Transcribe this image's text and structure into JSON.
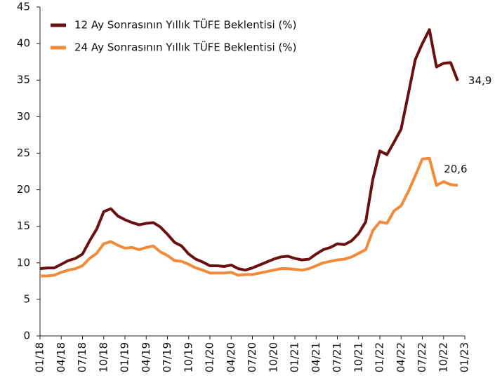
{
  "chart_data": {
    "type": "line",
    "categories": [
      "01/18",
      null,
      null,
      "04/18",
      null,
      null,
      "07/18",
      null,
      null,
      "10/18",
      null,
      null,
      "01/19",
      null,
      null,
      "04/19",
      null,
      null,
      "07/19",
      null,
      null,
      "10/19",
      null,
      null,
      "01/20",
      null,
      null,
      "04/20",
      null,
      null,
      "07/20",
      null,
      null,
      "10/20",
      null,
      null,
      "01/21",
      null,
      null,
      "04/21",
      null,
      null,
      "07/21",
      null,
      null,
      "10/21",
      null,
      null,
      "01/22",
      null,
      null,
      "04/22",
      null,
      null,
      "07/22",
      null,
      null,
      "10/22",
      null,
      null,
      "01/23"
    ],
    "series": [
      {
        "name": "12 Ay Sonrasının Yıllık TÜFE Beklentisi (%)",
        "color": "#6b1010",
        "values": [
          9.2,
          9.3,
          9.3,
          9.8,
          10.3,
          10.6,
          11.2,
          13.0,
          14.6,
          17.0,
          17.4,
          16.4,
          15.9,
          15.5,
          15.2,
          15.4,
          15.5,
          14.9,
          13.9,
          12.8,
          12.3,
          11.2,
          10.5,
          10.1,
          9.6,
          9.6,
          9.5,
          9.7,
          9.2,
          9.0,
          9.3,
          9.7,
          10.1,
          10.5,
          10.8,
          10.9,
          10.6,
          10.4,
          10.5,
          11.2,
          11.8,
          12.1,
          12.6,
          12.5,
          13.0,
          14.0,
          15.6,
          21.4,
          25.3,
          24.8,
          26.5,
          28.3,
          33.0,
          37.8,
          40.0,
          41.9,
          36.8,
          37.3,
          37.4,
          34.9,
          null
        ],
        "value_labels": [
          null,
          null,
          null,
          null,
          null,
          null,
          null,
          null,
          null,
          null,
          null,
          null,
          null,
          null,
          null,
          null,
          null,
          null,
          null,
          null,
          null,
          null,
          null,
          null,
          null,
          null,
          null,
          null,
          null,
          null,
          null,
          null,
          null,
          null,
          null,
          null,
          null,
          null,
          null,
          null,
          null,
          null,
          null,
          null,
          null,
          null,
          null,
          null,
          null,
          null,
          null,
          null,
          null,
          null,
          null,
          null,
          null,
          null,
          null,
          "34,9",
          null
        ]
      },
      {
        "name": "24 Ay Sonrasının Yıllık TÜFE Beklentisi (%)",
        "color": "#f28a3a",
        "values": [
          8.2,
          8.2,
          8.3,
          8.7,
          9.0,
          9.2,
          9.6,
          10.6,
          11.3,
          12.6,
          12.9,
          12.4,
          12.0,
          12.1,
          11.8,
          12.1,
          12.3,
          11.5,
          11.0,
          10.3,
          10.2,
          9.8,
          9.3,
          9.0,
          8.6,
          8.6,
          8.6,
          8.7,
          8.3,
          8.4,
          8.4,
          8.6,
          8.8,
          9.0,
          9.2,
          9.2,
          9.1,
          9.0,
          9.2,
          9.6,
          10.0,
          10.2,
          10.4,
          10.5,
          10.8,
          11.3,
          11.8,
          14.4,
          15.6,
          15.4,
          17.1,
          17.8,
          19.7,
          21.9,
          24.2,
          24.3,
          20.6,
          21.1,
          20.7,
          20.6,
          null
        ],
        "value_labels": [
          null,
          null,
          null,
          null,
          null,
          null,
          null,
          null,
          null,
          null,
          null,
          null,
          null,
          null,
          null,
          null,
          null,
          null,
          null,
          null,
          null,
          null,
          null,
          null,
          null,
          null,
          null,
          null,
          null,
          null,
          null,
          null,
          null,
          null,
          null,
          null,
          null,
          null,
          null,
          null,
          null,
          null,
          null,
          null,
          null,
          null,
          null,
          null,
          null,
          null,
          null,
          null,
          null,
          null,
          null,
          null,
          null,
          null,
          null,
          "20,6",
          null
        ]
      }
    ],
    "ylim": [
      0,
      45
    ],
    "yticks": [
      0,
      5,
      10,
      15,
      20,
      25,
      30,
      35,
      40,
      45
    ],
    "grid": false,
    "legend": "upper left"
  }
}
